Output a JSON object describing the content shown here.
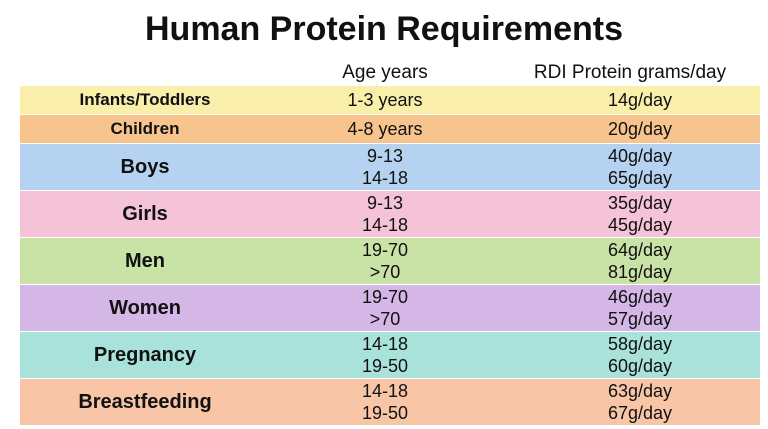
{
  "title": "Human Protein Requirements",
  "headers": {
    "age": "Age years",
    "rdi": "RDI Protein  grams/day"
  },
  "rows": [
    {
      "group": "Infants/Toddlers",
      "ages": [
        "1-3 years"
      ],
      "rdi": [
        "14g/day"
      ],
      "color": "#f9eeaa"
    },
    {
      "group": "Children",
      "ages": [
        "4-8 years"
      ],
      "rdi": [
        "20g/day"
      ],
      "color": "#f8c48e"
    },
    {
      "group": "Boys",
      "ages": [
        "9-13",
        "14-18"
      ],
      "rdi": [
        "40g/day",
        "65g/day"
      ],
      "color": "#b5d3f0"
    },
    {
      "group": "Girls",
      "ages": [
        "9-13",
        "14-18"
      ],
      "rdi": [
        "35g/day",
        "45g/day"
      ],
      "color": "#f5c3d7"
    },
    {
      "group": "Men",
      "ages": [
        "19-70",
        ">70"
      ],
      "rdi": [
        "64g/day",
        "81g/day"
      ],
      "color": "#c9e2a5"
    },
    {
      "group": "Women",
      "ages": [
        "19-70",
        ">70"
      ],
      "rdi": [
        "46g/day",
        "57g/day"
      ],
      "color": "#d4b7e6"
    },
    {
      "group": "Pregnancy",
      "ages": [
        "14-18",
        "19-50"
      ],
      "rdi": [
        "58g/day",
        "60g/day"
      ],
      "color": "#a9e2da"
    },
    {
      "group": "Breastfeeding",
      "ages": [
        "14-18",
        "19-50"
      ],
      "rdi": [
        "63g/day",
        "67g/day"
      ],
      "color": "#f8c6a6"
    }
  ]
}
